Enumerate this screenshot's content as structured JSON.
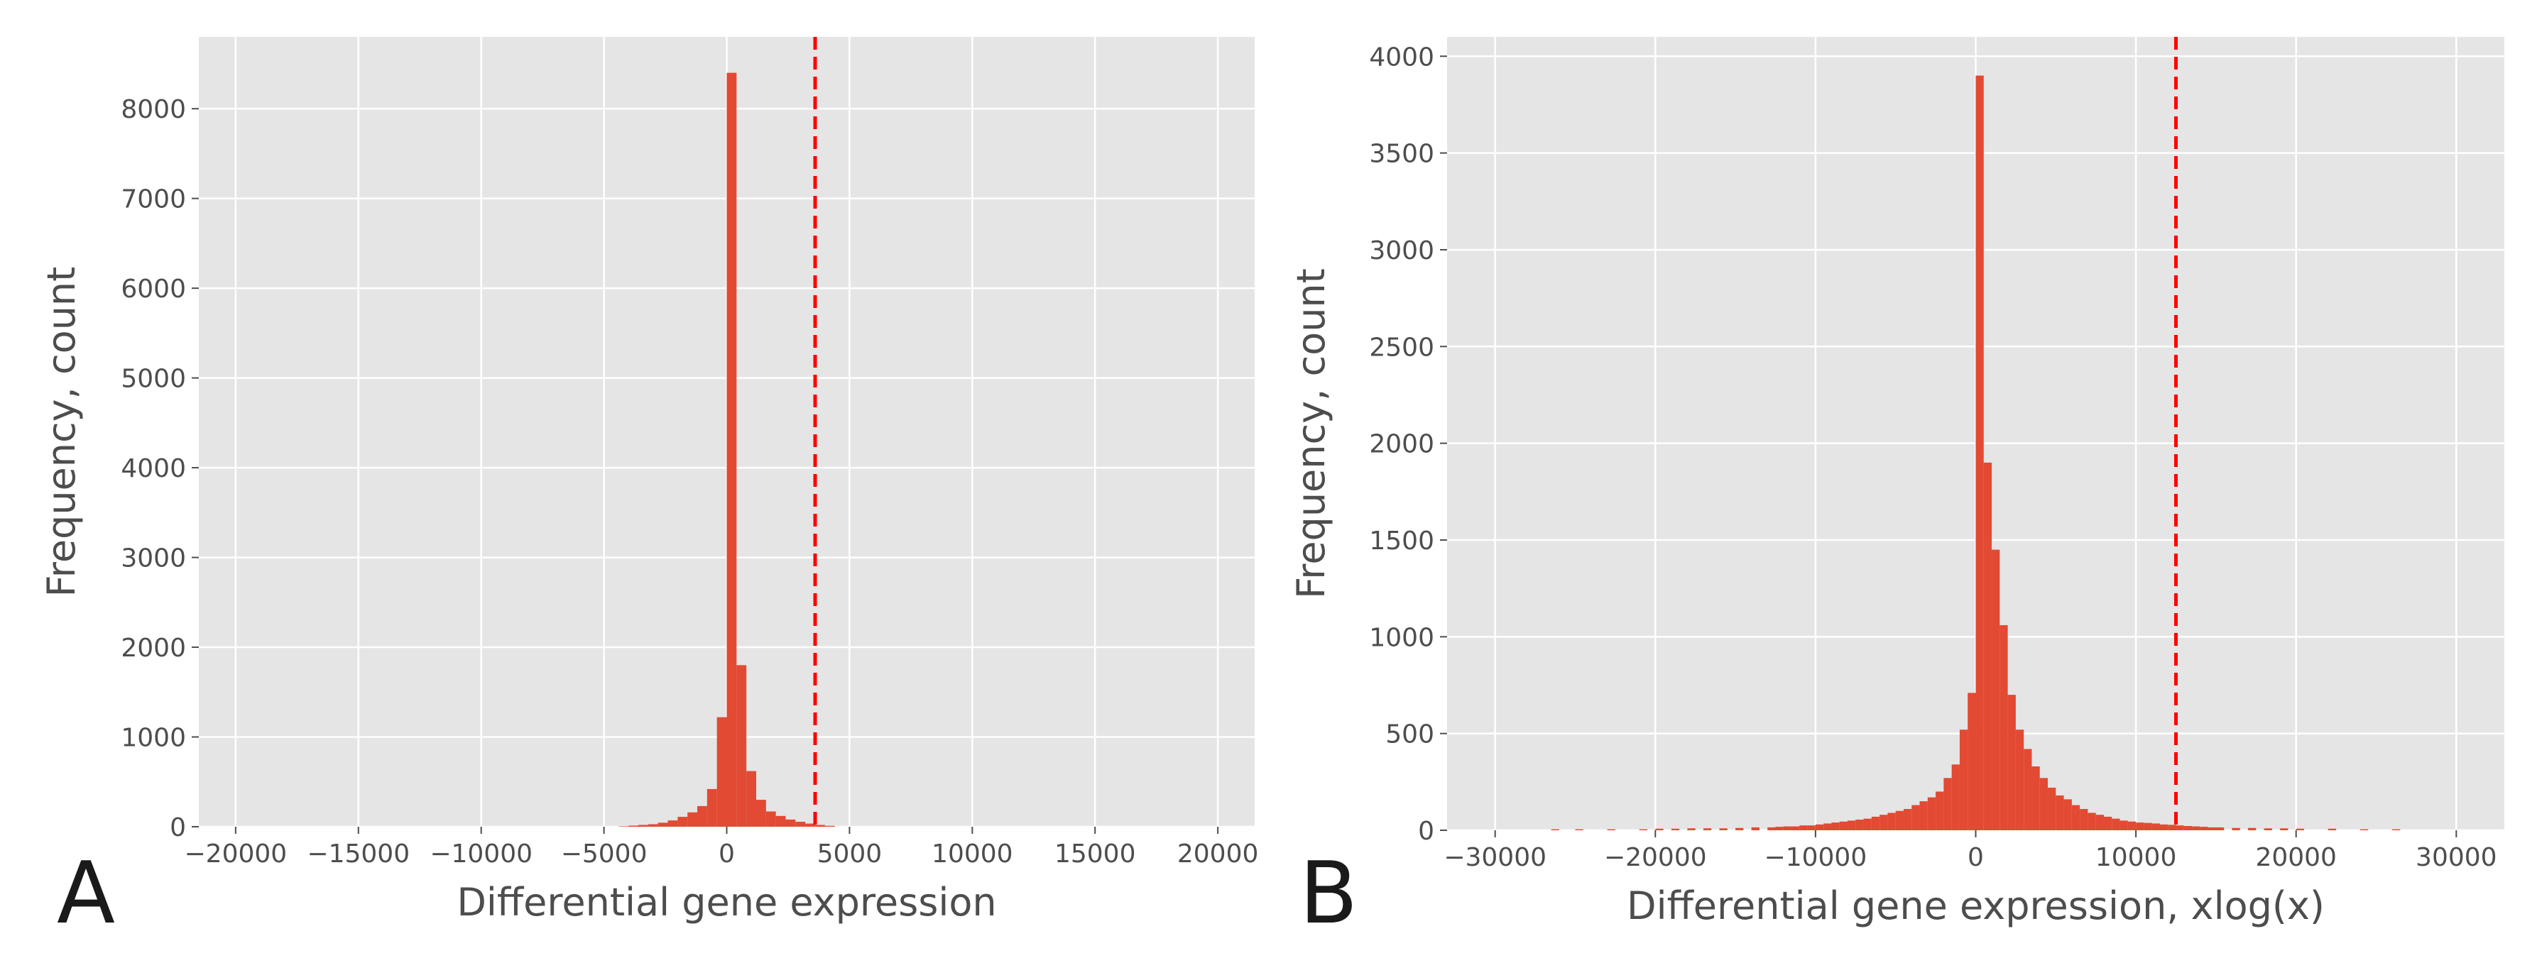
{
  "colors": {
    "bar": "#e24a33",
    "threshold_line": "#ff0000",
    "panel_background": "#e5e5e5",
    "grid": "#ffffff",
    "text": "#4d4d4d"
  },
  "chart_data": [
    {
      "type": "bar",
      "panel_label": "A",
      "title": "",
      "xlabel": "Differential gene expression",
      "ylabel": "Frequency, count",
      "xlim": [
        -21500,
        21500
      ],
      "ylim": [
        0,
        8800
      ],
      "xticks": [
        -20000,
        -15000,
        -10000,
        -5000,
        0,
        5000,
        10000,
        15000,
        20000
      ],
      "xtick_labels": [
        "−20000",
        "−15000",
        "−10000",
        "−5000",
        "0",
        "5000",
        "10000",
        "15000",
        "20000"
      ],
      "yticks": [
        0,
        1000,
        2000,
        3000,
        4000,
        5000,
        6000,
        7000,
        8000
      ],
      "ytick_labels": [
        "0",
        "1000",
        "2000",
        "3000",
        "4000",
        "5000",
        "6000",
        "7000",
        "8000"
      ],
      "grid": true,
      "bin_width": 400,
      "threshold": 3600,
      "bins_start": [
        -4400,
        -4000,
        -3600,
        -3200,
        -2800,
        -2400,
        -2000,
        -1600,
        -1200,
        -800,
        -400,
        0,
        400,
        800,
        1200,
        1600,
        2000,
        2400,
        2800,
        3200,
        3600,
        4000
      ],
      "values": [
        5,
        12,
        20,
        28,
        45,
        70,
        110,
        160,
        230,
        420,
        1220,
        8400,
        1800,
        620,
        300,
        170,
        120,
        80,
        55,
        35,
        20,
        10
      ]
    },
    {
      "type": "bar",
      "panel_label": "B",
      "title": "",
      "xlabel": "Differential gene expression, xlog(x)",
      "ylabel": "Frequency, count",
      "xlim": [
        -33000,
        33000
      ],
      "ylim": [
        0,
        4100
      ],
      "xticks": [
        -30000,
        -20000,
        -10000,
        0,
        10000,
        20000,
        30000
      ],
      "xtick_labels": [
        "−30000",
        "−20000",
        "−10000",
        "0",
        "10000",
        "20000",
        "30000"
      ],
      "yticks": [
        0,
        500,
        1000,
        1500,
        2000,
        2500,
        3000,
        3500,
        4000
      ],
      "ytick_labels": [
        "0",
        "500",
        "1000",
        "1500",
        "2000",
        "2500",
        "3000",
        "3500",
        "4000"
      ],
      "grid": true,
      "bin_width": 500,
      "threshold": 12500,
      "bins_start": [
        -26500,
        -25000,
        -23000,
        -21000,
        -20000,
        -19000,
        -18000,
        -17000,
        -16000,
        -15000,
        -14000,
        -13000,
        -12500,
        -12000,
        -11500,
        -11000,
        -10500,
        -10000,
        -9500,
        -9000,
        -8500,
        -8000,
        -7500,
        -7000,
        -6500,
        -6000,
        -5500,
        -5000,
        -4500,
        -4000,
        -3500,
        -3000,
        -2500,
        -2000,
        -1500,
        -1000,
        -500,
        0,
        500,
        1000,
        1500,
        2000,
        2500,
        3000,
        3500,
        4000,
        4500,
        5000,
        5500,
        6000,
        6500,
        7000,
        7500,
        8000,
        8500,
        9000,
        9500,
        10000,
        10500,
        11000,
        11500,
        12000,
        12500,
        13000,
        13500,
        14000,
        14500,
        15000,
        16000,
        17000,
        18000,
        19000,
        20000,
        22000,
        24000,
        26000
      ],
      "values": [
        5,
        5,
        5,
        5,
        8,
        8,
        10,
        10,
        10,
        12,
        15,
        15,
        18,
        20,
        20,
        25,
        25,
        30,
        35,
        40,
        45,
        50,
        55,
        60,
        70,
        80,
        90,
        100,
        110,
        130,
        150,
        170,
        200,
        270,
        340,
        520,
        710,
        3900,
        1900,
        1450,
        1060,
        700,
        520,
        420,
        330,
        270,
        220,
        180,
        160,
        130,
        110,
        90,
        80,
        70,
        60,
        50,
        45,
        40,
        38,
        35,
        30,
        28,
        25,
        22,
        20,
        18,
        15,
        15,
        12,
        12,
        10,
        10,
        8,
        8,
        5,
        5
      ]
    }
  ]
}
